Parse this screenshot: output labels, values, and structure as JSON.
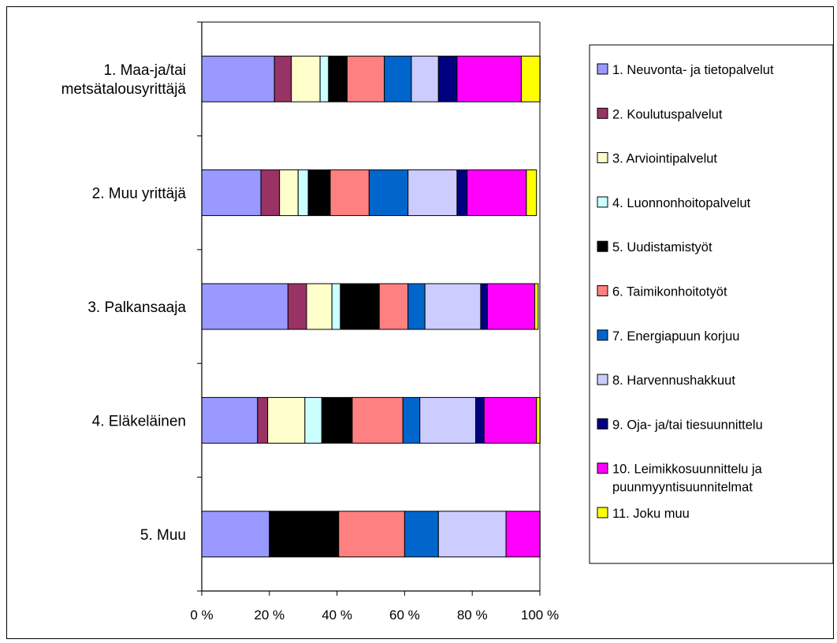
{
  "chart_data": {
    "type": "bar",
    "orientation": "horizontal",
    "stacked": "percent",
    "categories": [
      "1. Maa-ja/tai metsätalousyrittäjä",
      "2. Muu yrittäjä",
      "3. Palkansaaja",
      "4. Eläkeläinen",
      "5. Muu"
    ],
    "category_lines": [
      [
        "1. Maa-ja/tai",
        "metsätalousyrittäjä"
      ],
      [
        "2. Muu yrittäjä"
      ],
      [
        "3. Palkansaaja"
      ],
      [
        "4. Eläkeläinen"
      ],
      [
        "5. Muu"
      ]
    ],
    "xlim": [
      0,
      100
    ],
    "x_ticks": [
      "0 %",
      "20 %",
      "40 %",
      "60 %",
      "80 %",
      "100 %"
    ],
    "grid": false,
    "legend_position": "right",
    "series": [
      {
        "name": "1. Neuvonta- ja tietopalvelut",
        "color": "#9999FF",
        "values": [
          21.5,
          17.5,
          25.5,
          16.5,
          20
        ]
      },
      {
        "name": "2. Koulutuspalvelut",
        "color": "#993366",
        "values": [
          5,
          5.5,
          5.5,
          3,
          0
        ]
      },
      {
        "name": "3. Arviointipalvelut",
        "color": "#FFFFCC",
        "values": [
          8.5,
          5.5,
          7.5,
          11,
          0
        ]
      },
      {
        "name": "4. Luonnonhoitopalvelut",
        "color": "#CCFFFF",
        "values": [
          2.5,
          3,
          2.5,
          5,
          0
        ]
      },
      {
        "name": "5. Uudistamistyöt",
        "color": "#000000",
        "values": [
          5.5,
          6.5,
          11.5,
          9,
          20.5
        ]
      },
      {
        "name": "6. Taimikonhoitotyöt",
        "color": "#FF8080",
        "values": [
          11,
          11.5,
          8.5,
          15,
          19.5
        ]
      },
      {
        "name": "7. Energiapuun korjuu",
        "color": "#0066CC",
        "values": [
          8,
          11.5,
          5,
          5,
          10
        ]
      },
      {
        "name": "8. Harvennushakkuut",
        "color": "#CCCCFF",
        "values": [
          8,
          14.5,
          16.5,
          16.5,
          20
        ]
      },
      {
        "name": "9. Oja- ja/tai tiesuunnittelu",
        "color": "#000080",
        "values": [
          5.5,
          3,
          2,
          2.5,
          0
        ]
      },
      {
        "name": "10. Leimikkosuunnittelu ja puunmyyntisuunnitelmat",
        "color": "#FF00FF",
        "values": [
          19,
          17.5,
          14,
          15.5,
          10
        ]
      },
      {
        "name": "11. Joku muu",
        "color": "#FFFF00",
        "values": [
          5.5,
          3,
          1,
          1,
          0
        ]
      }
    ],
    "legend_lines": [
      [
        "1. Neuvonta- ja tietopalvelut"
      ],
      [
        "2. Koulutuspalvelut"
      ],
      [
        "3. Arviointipalvelut"
      ],
      [
        "4. Luonnonhoitopalvelut"
      ],
      [
        "5. Uudistamistyöt"
      ],
      [
        "6. Taimikonhoitotyöt"
      ],
      [
        "7. Energiapuun korjuu"
      ],
      [
        "8. Harvennushakkuut"
      ],
      [
        "9. Oja- ja/tai tiesuunnittelu"
      ],
      [
        "10. Leimikkosuunnittelu ja",
        "puunmyyntisuunnitelmat"
      ],
      [
        "11. Joku muu"
      ]
    ]
  }
}
